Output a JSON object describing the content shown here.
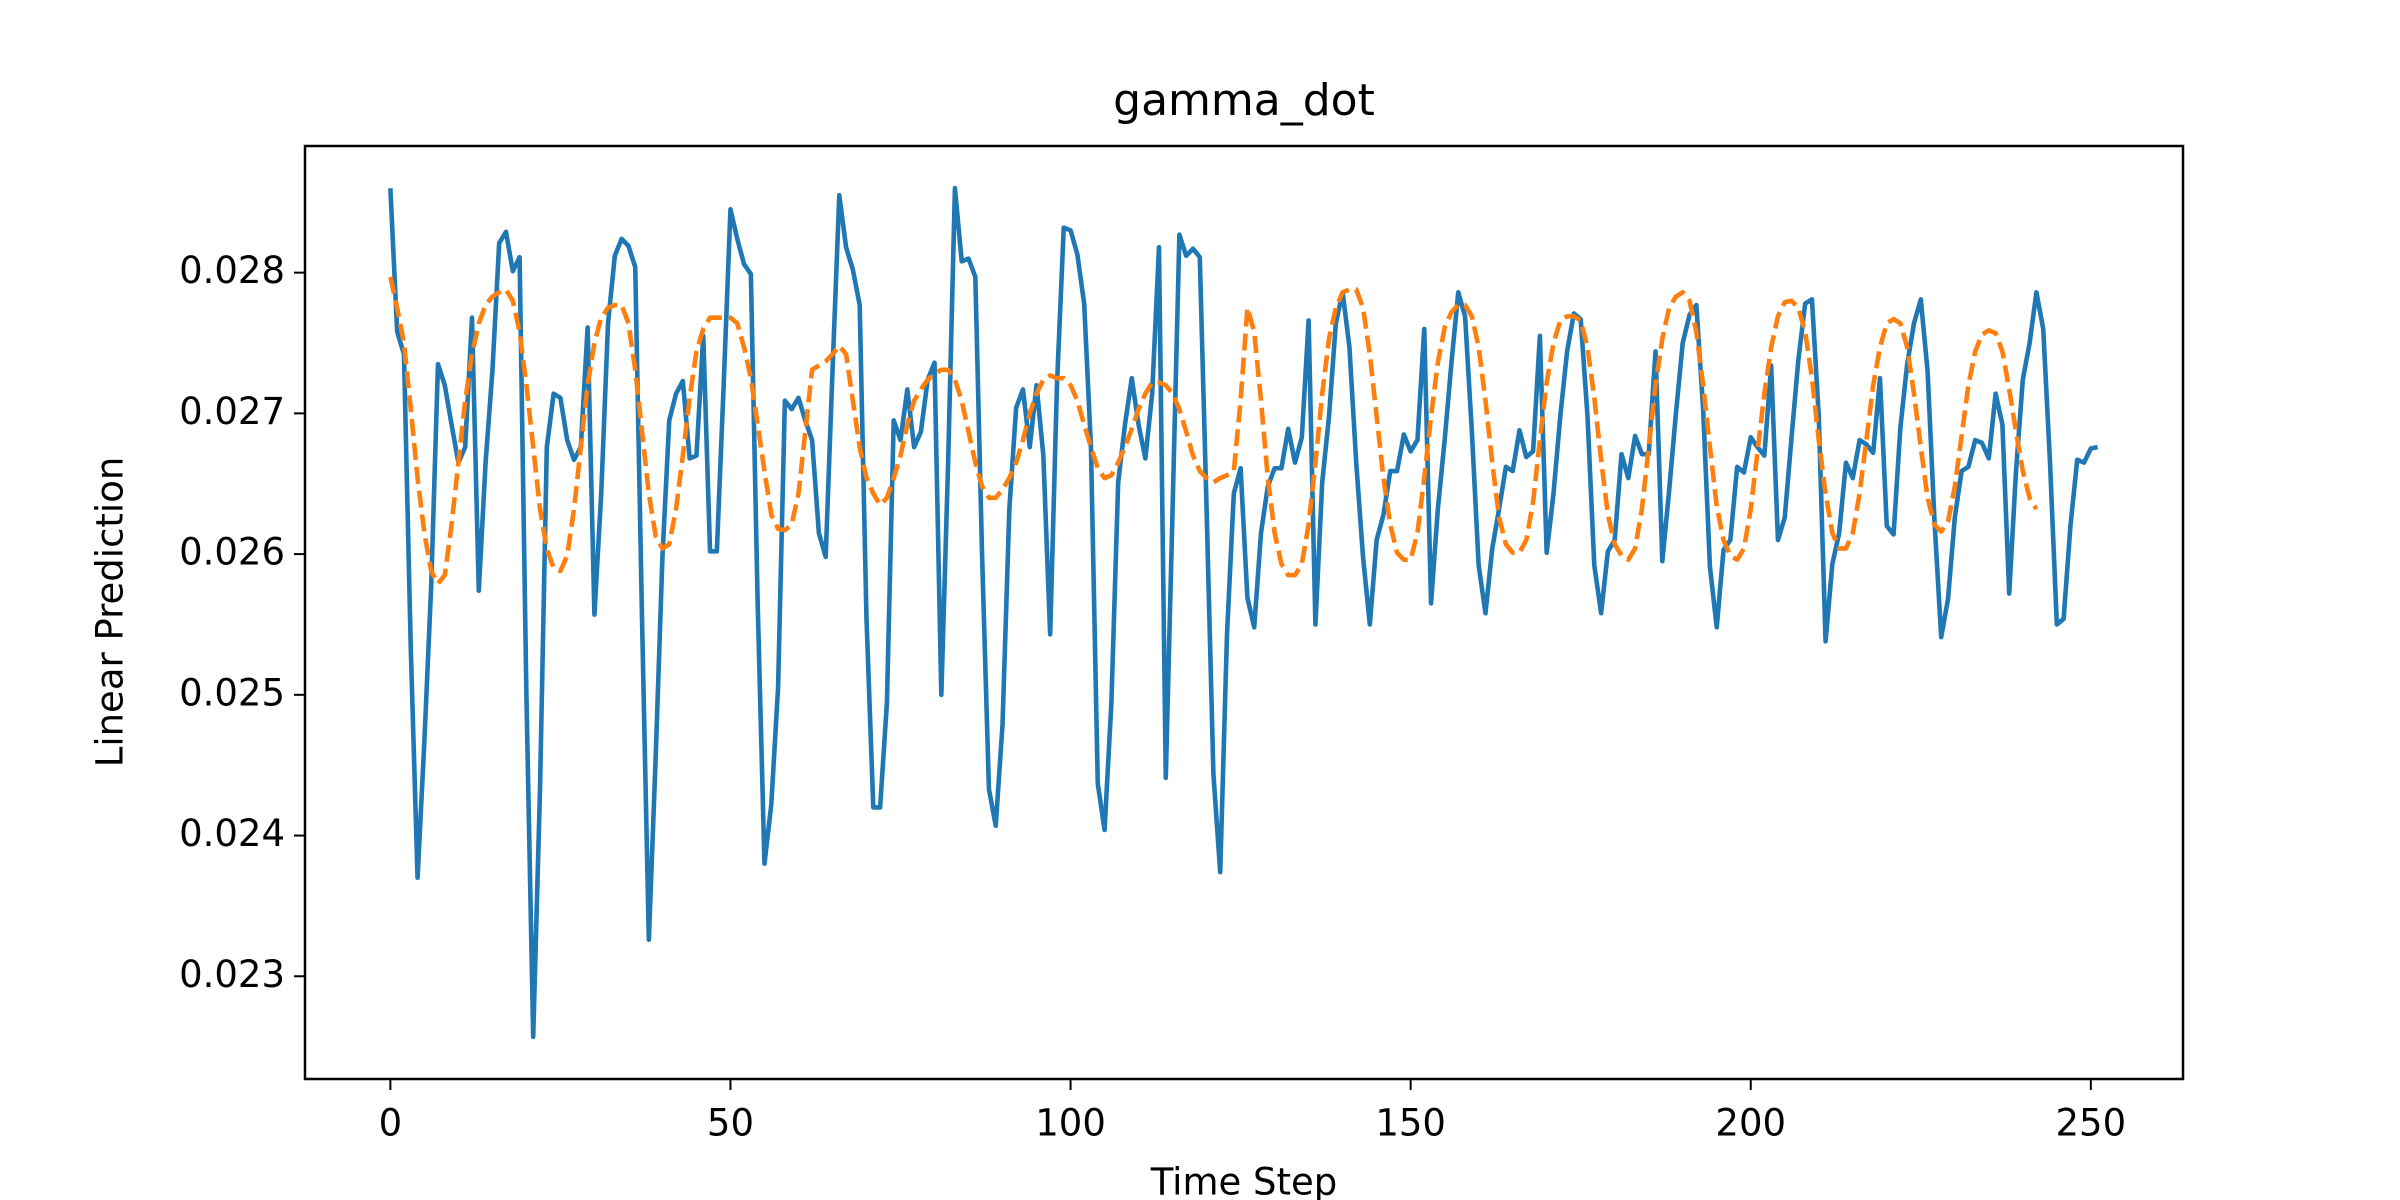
{
  "chart_data": {
    "type": "line",
    "title": "gamma_dot",
    "xlabel": "Time Step",
    "ylabel": "Linear Prediction",
    "x": [
      0,
      1,
      2,
      3,
      4,
      5,
      6,
      7,
      8,
      9,
      10,
      11,
      12,
      13,
      14,
      15,
      16,
      17,
      18,
      19,
      20,
      21,
      22,
      23,
      24,
      25,
      26,
      27,
      28,
      29,
      30,
      31,
      32,
      33,
      34,
      35,
      36,
      37,
      38,
      39,
      40,
      41,
      42,
      43,
      44,
      45,
      46,
      47,
      48,
      49,
      50,
      51,
      52,
      53,
      54,
      55,
      56,
      57,
      58,
      59,
      60,
      61,
      62,
      63,
      64,
      65,
      66,
      67,
      68,
      69,
      70,
      71,
      72,
      73,
      74,
      75,
      76,
      77,
      78,
      79,
      80,
      81,
      82,
      83,
      84,
      85,
      86,
      87,
      88,
      89,
      90,
      91,
      92,
      93,
      94,
      95,
      96,
      97,
      98,
      99,
      100,
      101,
      102,
      103,
      104,
      105,
      106,
      107,
      108,
      109,
      110,
      111,
      112,
      113,
      114,
      115,
      116,
      117,
      118,
      119,
      120,
      121,
      122,
      123,
      124,
      125,
      126,
      127,
      128,
      129,
      130,
      131,
      132,
      133,
      134,
      135,
      136,
      137,
      138,
      139,
      140,
      141,
      142,
      143,
      144,
      145,
      146,
      147,
      148,
      149,
      150,
      151,
      152,
      153,
      154,
      155,
      156,
      157,
      158,
      159,
      160,
      161,
      162,
      163,
      164,
      165,
      166,
      167,
      168,
      169,
      170,
      171,
      172,
      173,
      174,
      175,
      176,
      177,
      178,
      179,
      180,
      181,
      182,
      183,
      184,
      185,
      186,
      187,
      188,
      189,
      190,
      191,
      192,
      193,
      194,
      195,
      196,
      197,
      198,
      199,
      200,
      201,
      202,
      203,
      204,
      205,
      206,
      207,
      208,
      209,
      210,
      211,
      212,
      213,
      214,
      215,
      216,
      217,
      218,
      219,
      220,
      221,
      222,
      223,
      224,
      225,
      226,
      227,
      228,
      229,
      230,
      231,
      232,
      233,
      234,
      235,
      236,
      237,
      238,
      239,
      240,
      241,
      242,
      243,
      244,
      245,
      246,
      247,
      248,
      249,
      250,
      251
    ],
    "series": [
      {
        "color": "#1f77b4",
        "dash": false,
        "values": [
          0.0286,
          0.02758,
          0.02742,
          0.02533,
          0.0237,
          0.02467,
          0.02577,
          0.02735,
          0.0272,
          0.02692,
          0.02665,
          0.02676,
          0.02768,
          0.02574,
          0.02665,
          0.0273,
          0.02821,
          0.02829,
          0.02801,
          0.02811,
          0.025,
          0.02257,
          0.02433,
          0.02676,
          0.02714,
          0.02711,
          0.02681,
          0.02667,
          0.02676,
          0.02761,
          0.02557,
          0.02643,
          0.02764,
          0.02812,
          0.02824,
          0.02819,
          0.02804,
          0.02554,
          0.02326,
          0.02455,
          0.02598,
          0.02695,
          0.02714,
          0.02723,
          0.02668,
          0.0267,
          0.02755,
          0.02602,
          0.02602,
          0.0272,
          0.02845,
          0.02824,
          0.02806,
          0.02799,
          0.02565,
          0.0238,
          0.02422,
          0.02505,
          0.02709,
          0.02703,
          0.02711,
          0.02695,
          0.02681,
          0.02615,
          0.02598,
          0.0273,
          0.02855,
          0.02818,
          0.02802,
          0.02777,
          0.02554,
          0.0242,
          0.0242,
          0.02494,
          0.02695,
          0.02681,
          0.02717,
          0.02676,
          0.02687,
          0.02724,
          0.02736,
          0.025,
          0.02665,
          0.0286,
          0.02808,
          0.0281,
          0.02797,
          0.02598,
          0.02433,
          0.02407,
          0.02479,
          0.02632,
          0.02704,
          0.02717,
          0.02676,
          0.0272,
          0.0267,
          0.02543,
          0.0272,
          0.02832,
          0.0283,
          0.02813,
          0.02778,
          0.02676,
          0.02437,
          0.02404,
          0.02494,
          0.02651,
          0.02692,
          0.02725,
          0.02692,
          0.02668,
          0.02714,
          0.02818,
          0.02441,
          0.02632,
          0.02827,
          0.02812,
          0.02817,
          0.02811,
          0.02632,
          0.02444,
          0.02374,
          0.02543,
          0.02643,
          0.02661,
          0.02569,
          0.02548,
          0.02615,
          0.02648,
          0.02661,
          0.02661,
          0.02689,
          0.02665,
          0.02683,
          0.02766,
          0.0255,
          0.02651,
          0.02698,
          0.02764,
          0.02786,
          0.02747,
          0.02665,
          0.02598,
          0.0255,
          0.0261,
          0.02628,
          0.02659,
          0.02659,
          0.02685,
          0.02673,
          0.02681,
          0.0276,
          0.02565,
          0.02632,
          0.02681,
          0.02736,
          0.02786,
          0.02769,
          0.02687,
          0.02592,
          0.02558,
          0.02604,
          0.02632,
          0.02662,
          0.02659,
          0.02688,
          0.02669,
          0.02673,
          0.02755,
          0.02601,
          0.02643,
          0.02698,
          0.02744,
          0.02771,
          0.02767,
          0.02698,
          0.02592,
          0.02558,
          0.02602,
          0.0261,
          0.02671,
          0.02654,
          0.02684,
          0.02671,
          0.02671,
          0.02744,
          0.02595,
          0.02645,
          0.027,
          0.0275,
          0.0277,
          0.02777,
          0.02703,
          0.02591,
          0.02548,
          0.02603,
          0.0261,
          0.02662,
          0.02658,
          0.02683,
          0.02676,
          0.0267,
          0.02734,
          0.0261,
          0.02626,
          0.02683,
          0.02738,
          0.02778,
          0.02781,
          0.02698,
          0.02538,
          0.02593,
          0.02615,
          0.02665,
          0.02654,
          0.02681,
          0.02678,
          0.02672,
          0.02725,
          0.0262,
          0.02614,
          0.0269,
          0.02735,
          0.02764,
          0.02781,
          0.0273,
          0.02625,
          0.02541,
          0.02568,
          0.02626,
          0.02659,
          0.02662,
          0.02681,
          0.02679,
          0.02668,
          0.02714,
          0.02692,
          0.02572,
          0.02659,
          0.02724,
          0.0275,
          0.02786,
          0.0276,
          0.02665,
          0.0255,
          0.02554,
          0.0262,
          0.02667,
          0.02665,
          0.02675,
          0.02676
        ]
      },
      {
        "color": "#ff7f0e",
        "dash": true,
        "values": [
          0.02797,
          0.02775,
          0.0275,
          0.02703,
          0.02654,
          0.02615,
          0.02588,
          0.02579,
          0.02585,
          0.02621,
          0.02665,
          0.02709,
          0.02742,
          0.02764,
          0.02777,
          0.02783,
          0.02786,
          0.02788,
          0.0278,
          0.02758,
          0.0272,
          0.02676,
          0.02632,
          0.02604,
          0.0259,
          0.02588,
          0.02599,
          0.02632,
          0.02676,
          0.0272,
          0.0275,
          0.02768,
          0.02775,
          0.02777,
          0.02777,
          0.02764,
          0.02731,
          0.02687,
          0.02643,
          0.02613,
          0.02604,
          0.02607,
          0.02632,
          0.0267,
          0.02711,
          0.02744,
          0.0276,
          0.02768,
          0.02768,
          0.02768,
          0.02768,
          0.02764,
          0.02747,
          0.02725,
          0.02692,
          0.02659,
          0.02628,
          0.02618,
          0.02617,
          0.02621,
          0.02643,
          0.02687,
          0.02731,
          0.02734,
          0.02737,
          0.02742,
          0.02748,
          0.02742,
          0.02709,
          0.02676,
          0.02654,
          0.02643,
          0.02635,
          0.0264,
          0.02654,
          0.0267,
          0.02692,
          0.02709,
          0.02717,
          0.02724,
          0.02728,
          0.02731,
          0.02731,
          0.02724,
          0.02709,
          0.02687,
          0.02665,
          0.02648,
          0.0264,
          0.0264,
          0.02646,
          0.02654,
          0.02665,
          0.02681,
          0.027,
          0.02714,
          0.02724,
          0.02727,
          0.02725,
          0.02725,
          0.0272,
          0.02709,
          0.02692,
          0.02676,
          0.02661,
          0.02654,
          0.02656,
          0.02665,
          0.02676,
          0.02689,
          0.02703,
          0.02714,
          0.02722,
          0.02722,
          0.0272,
          0.02714,
          0.02703,
          0.02687,
          0.0267,
          0.02659,
          0.02654,
          0.02651,
          0.02654,
          0.02656,
          0.02659,
          0.02709,
          0.02775,
          0.02758,
          0.02709,
          0.02654,
          0.02615,
          0.02593,
          0.02585,
          0.02585,
          0.02593,
          0.02621,
          0.02665,
          0.02714,
          0.02753,
          0.02775,
          0.02786,
          0.02788,
          0.02788,
          0.02775,
          0.02742,
          0.02698,
          0.02654,
          0.02621,
          0.02601,
          0.02596,
          0.02596,
          0.02615,
          0.02654,
          0.02698,
          0.02736,
          0.02761,
          0.02772,
          0.02777,
          0.02777,
          0.02769,
          0.02747,
          0.02709,
          0.02665,
          0.02626,
          0.02607,
          0.02601,
          0.02601,
          0.0261,
          0.02637,
          0.02681,
          0.02722,
          0.0275,
          0.02766,
          0.02769,
          0.02769,
          0.02766,
          0.02747,
          0.02711,
          0.02667,
          0.02628,
          0.02607,
          0.02599,
          0.02596,
          0.02604,
          0.02632,
          0.02676,
          0.0272,
          0.02753,
          0.02775,
          0.02783,
          0.02786,
          0.0278,
          0.02758,
          0.0272,
          0.02676,
          0.02634,
          0.0261,
          0.02599,
          0.02596,
          0.02604,
          0.02632,
          0.02673,
          0.02714,
          0.02747,
          0.02769,
          0.02779,
          0.0278,
          0.02775,
          0.02758,
          0.02725,
          0.02681,
          0.02643,
          0.02615,
          0.02604,
          0.02604,
          0.02615,
          0.02643,
          0.02681,
          0.0272,
          0.02747,
          0.02764,
          0.02767,
          0.02764,
          0.02747,
          0.02714,
          0.02676,
          0.0264,
          0.02621,
          0.02616,
          0.02623,
          0.02648,
          0.02684,
          0.0272,
          0.02744,
          0.02756,
          0.02759,
          0.02757,
          0.02744,
          0.02717,
          0.02687,
          0.02659,
          0.0264,
          0.02632,
          null,
          null,
          null,
          null,
          null,
          null,
          null,
          null,
          null
        ]
      }
    ],
    "xlim": [
      -12.55,
      263.55
    ],
    "xticks": [
      0,
      50,
      100,
      150,
      200,
      250
    ],
    "ylim": [
      0.02227,
      0.0289
    ],
    "yticks": [
      0.023,
      0.024,
      0.025,
      0.026,
      0.027,
      0.028
    ]
  }
}
